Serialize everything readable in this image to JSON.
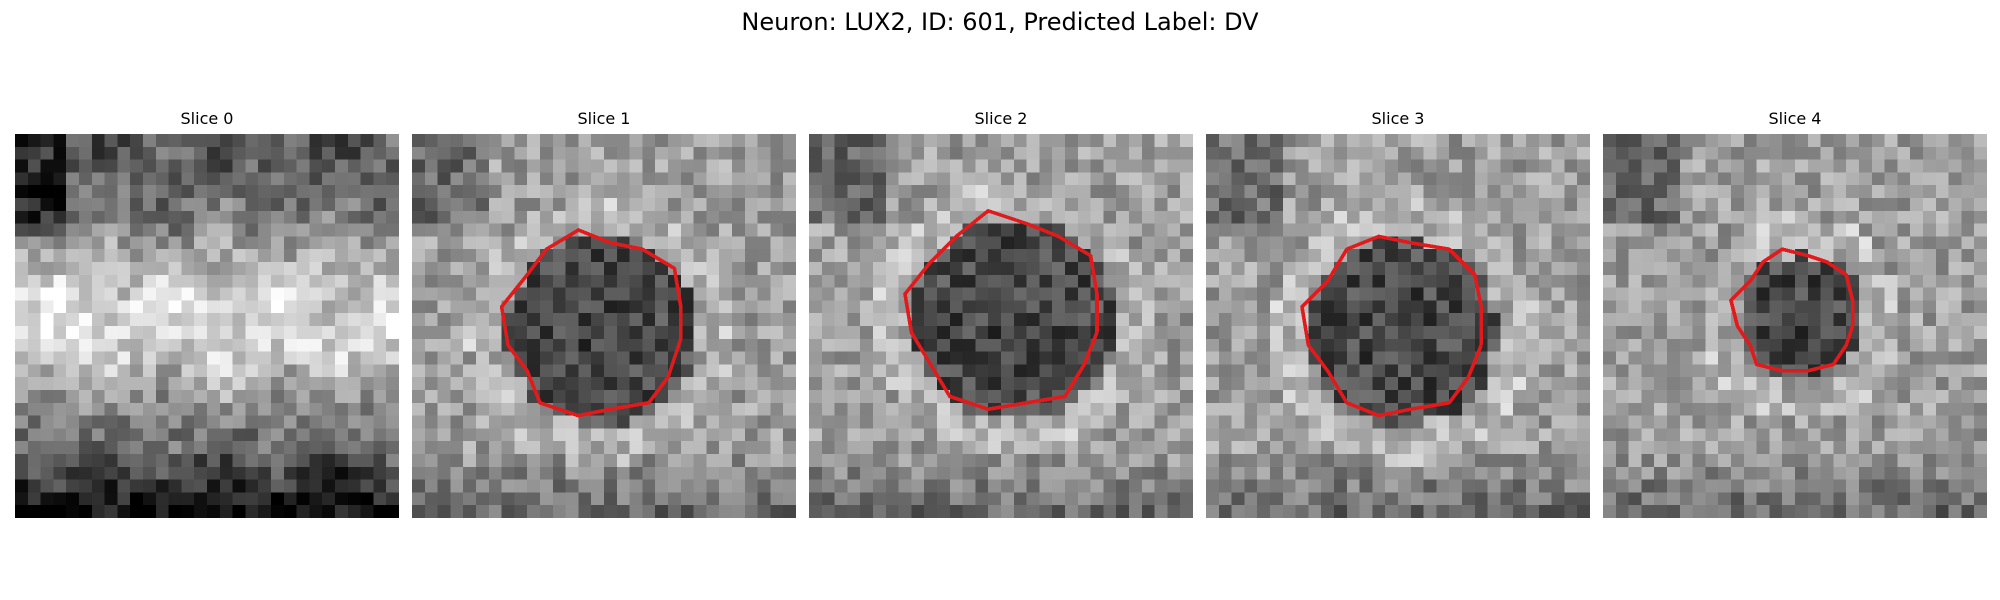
{
  "figure": {
    "title": "Neuron: LUX2, ID: 601, Predicted Label: DV"
  },
  "outline_color": "#e31a1c",
  "colormap": "gray",
  "grid_size": 30,
  "slices": [
    {
      "title": "Slice 0",
      "has_outline": false,
      "seed": 11,
      "pattern": "bright-band"
    },
    {
      "title": "Slice 1",
      "has_outline": true,
      "seed": 23,
      "pattern": "dark-center"
    },
    {
      "title": "Slice 2",
      "has_outline": true,
      "seed": 37,
      "pattern": "dark-center"
    },
    {
      "title": "Slice 3",
      "has_outline": true,
      "seed": 41,
      "pattern": "dark-center"
    },
    {
      "title": "Slice 4",
      "has_outline": true,
      "seed": 53,
      "pattern": "small-dark-center"
    }
  ]
}
